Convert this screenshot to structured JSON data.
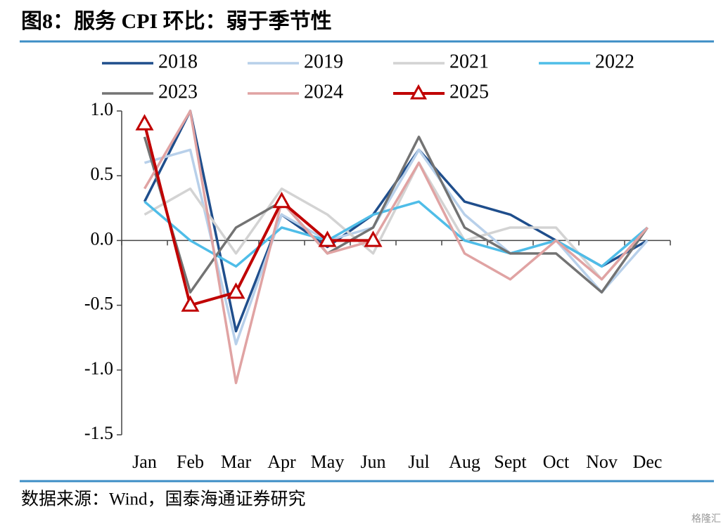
{
  "chart_data": {
    "type": "line",
    "title": "图8：服务 CPI 环比：弱于季节性",
    "source": "数据来源：Wind，国泰海通证券研究",
    "watermark": "格隆汇",
    "categories": [
      "Jan",
      "Feb",
      "Mar",
      "Apr",
      "May",
      "Jun",
      "Jul",
      "Aug",
      "Sept",
      "Oct",
      "Nov",
      "Dec"
    ],
    "ylim": [
      -1.5,
      1.0
    ],
    "yticks": [
      {
        "value": 1.0,
        "label": "1.0"
      },
      {
        "value": 0.5,
        "label": "0.5"
      },
      {
        "value": 0,
        "label": "0.0"
      },
      {
        "value": -0.5,
        "label": "-0.5"
      },
      {
        "value": -1.0,
        "label": "-1.0"
      },
      {
        "value": -1.5,
        "label": "-1.5"
      }
    ],
    "grid": false,
    "legend": "top",
    "series": [
      {
        "name": "2018",
        "color": "#1f4e8c",
        "values": [
          0.3,
          1.0,
          -0.7,
          0.2,
          -0.05,
          0.2,
          0.7,
          0.3,
          0.2,
          0.0,
          -0.2,
          0.0
        ]
      },
      {
        "name": "2019",
        "color": "#b8d0ea",
        "values": [
          0.6,
          0.7,
          -0.8,
          0.2,
          0.0,
          0.1,
          0.7,
          0.2,
          -0.1,
          0.0,
          -0.4,
          0.0
        ]
      },
      {
        "name": "2021",
        "color": "#d3d3d3",
        "values": [
          0.2,
          0.4,
          -0.1,
          0.4,
          0.2,
          -0.1,
          0.6,
          0.0,
          0.1,
          0.1,
          -0.3,
          0.1
        ]
      },
      {
        "name": "2022",
        "color": "#4fbde8",
        "values": [
          0.3,
          0.0,
          -0.2,
          0.1,
          0.0,
          0.2,
          0.3,
          0.0,
          -0.1,
          0.0,
          -0.2,
          0.1
        ]
      },
      {
        "name": "2023",
        "color": "#737373",
        "values": [
          0.8,
          -0.4,
          0.1,
          0.3,
          -0.1,
          0.1,
          0.8,
          0.1,
          -0.1,
          -0.1,
          -0.4,
          0.1
        ]
      },
      {
        "name": "2024",
        "color": "#e0a3a3",
        "values": [
          0.4,
          1.0,
          -1.1,
          0.3,
          -0.1,
          0.0,
          0.6,
          -0.1,
          -0.3,
          0.0,
          -0.3,
          0.1
        ]
      },
      {
        "name": "2025",
        "color": "#c00000",
        "marker": "triangle",
        "values": [
          0.9,
          -0.5,
          -0.4,
          0.3,
          0.0,
          0.0,
          null,
          null,
          null,
          null,
          null,
          null
        ]
      }
    ]
  }
}
